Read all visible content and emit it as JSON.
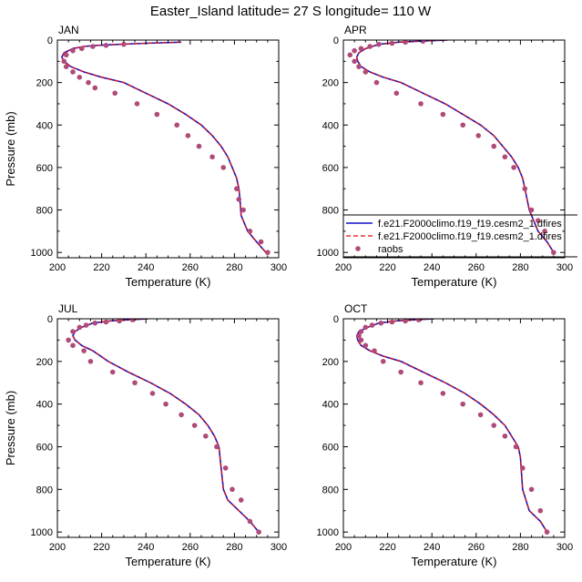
{
  "title": "Easter_Island  latitude= 27 S longitude= 110 W",
  "legend": {
    "placement": "inside APR panel, lower",
    "entries": [
      {
        "label": "f.e21.F2000climo.f19_f19.cesm2_1.dfires",
        "style": "solid",
        "color": "#1010c8"
      },
      {
        "label": "f.e21.F2000climo.f19_f19.cesm2_1.dfires",
        "style": "dashed",
        "color": "#e01010"
      },
      {
        "label": "raobs",
        "style": "marker",
        "color": "#b04a78"
      }
    ]
  },
  "colors": {
    "model_solid": "#1010c8",
    "model_dashed": "#e01010",
    "obs_marker": "#b04a78"
  },
  "chart_data": [
    {
      "type": "line",
      "panel": "JAN",
      "xlabel": "Temperature (K)",
      "ylabel": "Pressure (mb)",
      "xlim": [
        200,
        300
      ],
      "ylim": [
        0,
        1025
      ],
      "y_inverted": true,
      "xticks": [
        200,
        220,
        240,
        260,
        280,
        300
      ],
      "yticks": [
        0,
        200,
        400,
        600,
        800,
        1000
      ],
      "series": [
        {
          "style": "solid",
          "x": [
            256,
            240,
            228,
            218,
            212,
            207,
            203,
            202,
            203,
            206,
            212,
            220,
            230,
            240,
            250,
            258,
            265,
            270,
            274,
            277,
            279,
            281,
            282,
            282.5,
            283,
            286,
            290,
            295
          ],
          "y": [
            10,
            15,
            20,
            25,
            30,
            40,
            60,
            80,
            100,
            125,
            150,
            175,
            200,
            250,
            300,
            350,
            400,
            450,
            500,
            550,
            600,
            650,
            700,
            750,
            825,
            900,
            950,
            1010
          ]
        },
        {
          "style": "dashed",
          "x": [
            256,
            240,
            228,
            218,
            212,
            207,
            203,
            202,
            203,
            206,
            212,
            220,
            230,
            240,
            250,
            258,
            265,
            270,
            274,
            277,
            279,
            281,
            282,
            282.5,
            283,
            286,
            290,
            295
          ],
          "y": [
            10,
            15,
            20,
            25,
            30,
            40,
            60,
            80,
            100,
            125,
            150,
            175,
            200,
            250,
            300,
            350,
            400,
            450,
            500,
            550,
            600,
            650,
            700,
            750,
            825,
            900,
            950,
            1010
          ]
        },
        {
          "style": "marker",
          "x": [
            230,
            222,
            216,
            211,
            207,
            204,
            203,
            204,
            207,
            210,
            214,
            217,
            226,
            236,
            245,
            254,
            259,
            264,
            270,
            275,
            281,
            282,
            284,
            287,
            292,
            295
          ],
          "y": [
            20,
            25,
            30,
            40,
            50,
            70,
            100,
            125,
            150,
            175,
            200,
            225,
            250,
            300,
            350,
            400,
            450,
            500,
            550,
            600,
            700,
            750,
            800,
            900,
            950,
            1000
          ]
        }
      ]
    },
    {
      "type": "line",
      "panel": "APR",
      "xlabel": "Temperature (K)",
      "ylabel": "",
      "xlim": [
        200,
        300
      ],
      "ylim": [
        0,
        1025
      ],
      "y_inverted": true,
      "xticks": [
        200,
        220,
        240,
        260,
        280,
        300
      ],
      "yticks": [
        0,
        200,
        400,
        600,
        800,
        1000
      ],
      "series": [
        {
          "style": "solid",
          "x": [
            247,
            235,
            225,
            216,
            210,
            207,
            206,
            206.5,
            208,
            212,
            218,
            226,
            236,
            246,
            254,
            262,
            268,
            272,
            276,
            279,
            281,
            282,
            284,
            288,
            292,
            295
          ],
          "y": [
            0,
            5,
            10,
            20,
            40,
            60,
            80,
            100,
            125,
            150,
            175,
            200,
            250,
            300,
            350,
            400,
            450,
            500,
            550,
            600,
            650,
            700,
            800,
            900,
            950,
            1000
          ]
        },
        {
          "style": "dashed",
          "x": [
            247,
            235,
            225,
            216,
            210,
            207,
            206,
            206.5,
            208,
            212,
            218,
            226,
            236,
            246,
            254,
            262,
            268,
            272,
            276,
            279,
            281,
            282,
            284,
            288,
            292,
            295
          ],
          "y": [
            0,
            5,
            10,
            20,
            40,
            60,
            80,
            100,
            125,
            150,
            175,
            200,
            250,
            300,
            350,
            400,
            450,
            500,
            550,
            600,
            650,
            700,
            800,
            900,
            950,
            1000
          ]
        },
        {
          "style": "marker",
          "x": [
            236,
            228,
            222,
            216,
            212,
            208,
            205,
            203,
            205,
            207,
            210,
            215,
            224,
            235,
            245,
            254,
            261,
            268,
            273,
            277,
            282,
            285,
            288,
            291,
            295
          ],
          "y": [
            5,
            10,
            15,
            20,
            30,
            40,
            50,
            70,
            100,
            125,
            150,
            200,
            250,
            300,
            350,
            400,
            450,
            500,
            550,
            600,
            700,
            800,
            850,
            900,
            1000
          ]
        }
      ]
    },
    {
      "type": "line",
      "panel": "JUL",
      "xlabel": "Temperature (K)",
      "ylabel": "Pressure (mb)",
      "xlim": [
        200,
        300
      ],
      "ylim": [
        0,
        1025
      ],
      "y_inverted": true,
      "xticks": [
        200,
        220,
        240,
        260,
        280,
        300
      ],
      "yticks": [
        0,
        200,
        400,
        600,
        800,
        1000
      ],
      "series": [
        {
          "style": "solid",
          "x": [
            241,
            232,
            224,
            216,
            211,
            208,
            207,
            208,
            211,
            216,
            223,
            232,
            242,
            251,
            258,
            264,
            268,
            271,
            273,
            274,
            275,
            277,
            282,
            287,
            291
          ],
          "y": [
            0,
            5,
            10,
            20,
            40,
            60,
            80,
            100,
            125,
            150,
            200,
            250,
            300,
            350,
            400,
            450,
            500,
            550,
            600,
            700,
            800,
            850,
            900,
            950,
            1000
          ]
        },
        {
          "style": "dashed",
          "x": [
            241,
            232,
            224,
            216,
            211,
            208,
            207,
            208,
            211,
            216,
            223,
            232,
            242,
            251,
            258,
            264,
            268,
            271,
            273,
            274,
            275,
            277,
            282,
            287,
            291
          ],
          "y": [
            0,
            5,
            10,
            20,
            40,
            60,
            80,
            100,
            125,
            150,
            200,
            250,
            300,
            350,
            400,
            450,
            500,
            550,
            600,
            700,
            800,
            850,
            900,
            950,
            1000
          ]
        },
        {
          "style": "marker",
          "x": [
            234,
            228,
            222,
            217,
            213,
            210,
            207,
            205,
            207,
            212,
            215,
            225,
            235,
            243,
            249,
            256,
            262,
            267,
            272,
            276,
            279,
            283,
            287,
            291
          ],
          "y": [
            5,
            10,
            15,
            20,
            30,
            40,
            60,
            100,
            125,
            150,
            200,
            250,
            300,
            350,
            400,
            450,
            500,
            550,
            600,
            700,
            800,
            850,
            950,
            1000
          ]
        }
      ]
    },
    {
      "type": "line",
      "panel": "OCT",
      "xlabel": "Temperature (K)",
      "ylabel": "",
      "xlim": [
        200,
        300
      ],
      "ylim": [
        0,
        1025
      ],
      "y_inverted": true,
      "xticks": [
        200,
        220,
        240,
        260,
        280,
        300
      ],
      "yticks": [
        0,
        200,
        400,
        600,
        800,
        1000
      ],
      "series": [
        {
          "style": "solid",
          "x": [
            241,
            232,
            224,
            216,
            211,
            207,
            206,
            206.5,
            208,
            212,
            218,
            226,
            236,
            246,
            255,
            262,
            268,
            273,
            276,
            279,
            280,
            281,
            284,
            289,
            292
          ],
          "y": [
            0,
            5,
            10,
            20,
            40,
            60,
            80,
            100,
            125,
            150,
            175,
            200,
            250,
            300,
            350,
            400,
            450,
            500,
            550,
            600,
            650,
            800,
            900,
            950,
            1000
          ]
        },
        {
          "style": "dashed",
          "x": [
            241,
            232,
            224,
            216,
            211,
            207,
            206,
            206.5,
            208,
            212,
            218,
            226,
            236,
            246,
            255,
            262,
            268,
            273,
            276,
            279,
            280,
            281,
            284,
            289,
            292
          ],
          "y": [
            0,
            5,
            10,
            20,
            40,
            60,
            80,
            100,
            125,
            150,
            175,
            200,
            250,
            300,
            350,
            400,
            450,
            500,
            550,
            600,
            650,
            800,
            900,
            950,
            1000
          ]
        },
        {
          "style": "marker",
          "x": [
            234,
            228,
            222,
            217,
            213,
            210,
            208,
            207,
            208,
            210,
            214,
            218,
            226,
            235,
            245,
            254,
            262,
            268,
            273,
            278,
            281,
            285,
            289,
            292
          ],
          "y": [
            5,
            10,
            15,
            20,
            30,
            40,
            60,
            80,
            100,
            125,
            150,
            200,
            250,
            300,
            350,
            400,
            450,
            500,
            550,
            600,
            700,
            800,
            900,
            1000
          ]
        }
      ]
    }
  ]
}
